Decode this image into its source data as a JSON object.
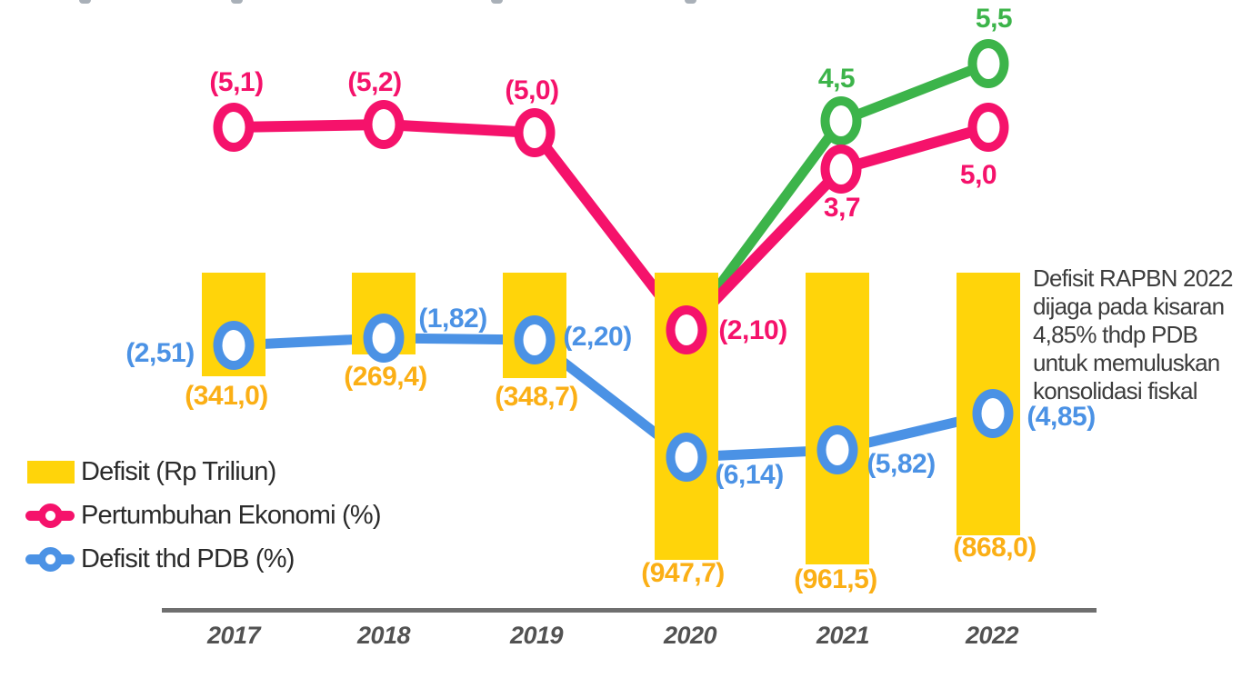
{
  "colors": {
    "bar": "#FFD40A",
    "bar_label": "#FBAF15",
    "growth_line": "#F5126B",
    "projection_line": "#3CB44A",
    "deficit_pdb_line": "#4B92E5",
    "axis": "#6f6f6f",
    "year_label": "#525252",
    "annotation_text": "#3d3d3d"
  },
  "chart_data": {
    "type": "combo",
    "subtype": "bar + line",
    "categories": [
      "2017",
      "2018",
      "2019",
      "2020",
      "2021",
      "2022"
    ],
    "grid": false,
    "legend_position": "bottom-left",
    "bar_series": {
      "name": "Defisit (Rp Triliun)",
      "color": "#FFD40A",
      "label_color": "#FBAF15",
      "values": [
        341.0,
        269.4,
        348.7,
        947.7,
        961.5,
        868.0
      ],
      "labels": [
        "(341,0)",
        "(269,4)",
        "(348,7)",
        "(947,7)",
        "(961,5)",
        "(868,0)"
      ]
    },
    "line_series": [
      {
        "name": "Pertumbuhan Ekonomi (%)",
        "color": "#F5126B",
        "values": [
          5.1,
          5.2,
          5.0,
          -2.1,
          3.7,
          5.0
        ],
        "labels": [
          "(5,1)",
          "(5,2)",
          "(5,0)",
          "(2,10)",
          "3,7",
          "5,0"
        ]
      },
      {
        "name": "",
        "color": "#3CB44A",
        "values": [
          null,
          null,
          null,
          -2.1,
          4.5,
          5.5
        ],
        "labels": [
          null,
          null,
          null,
          null,
          "4,5",
          "5,5"
        ]
      },
      {
        "name": "Defisit thd PDB (%)",
        "color": "#4B92E5",
        "values": [
          2.51,
          1.82,
          2.2,
          6.14,
          5.82,
          4.85
        ],
        "labels": [
          "(2,51)",
          "(1,82)",
          "(2,20)",
          "(6,14)",
          "(5,82)",
          "(4,85)"
        ]
      }
    ]
  },
  "legend": {
    "items": [
      {
        "label": "Defisit (Rp Triliun)",
        "color": "#FFD40A",
        "symbol": "bar-swatch"
      },
      {
        "label": "Pertumbuhan Ekonomi (%)",
        "color": "#F5126B",
        "symbol": "line-with-ring"
      },
      {
        "label": "Defisit thd PDB (%)",
        "color": "#4B92E5",
        "symbol": "line-with-ring"
      }
    ]
  },
  "annotation": {
    "lines": [
      "Defisit RAPBN 2022",
      "dijaga pada kisaran",
      "4,85% thdp PDB",
      "untuk memuluskan",
      "konsolidasi fiskal"
    ]
  }
}
